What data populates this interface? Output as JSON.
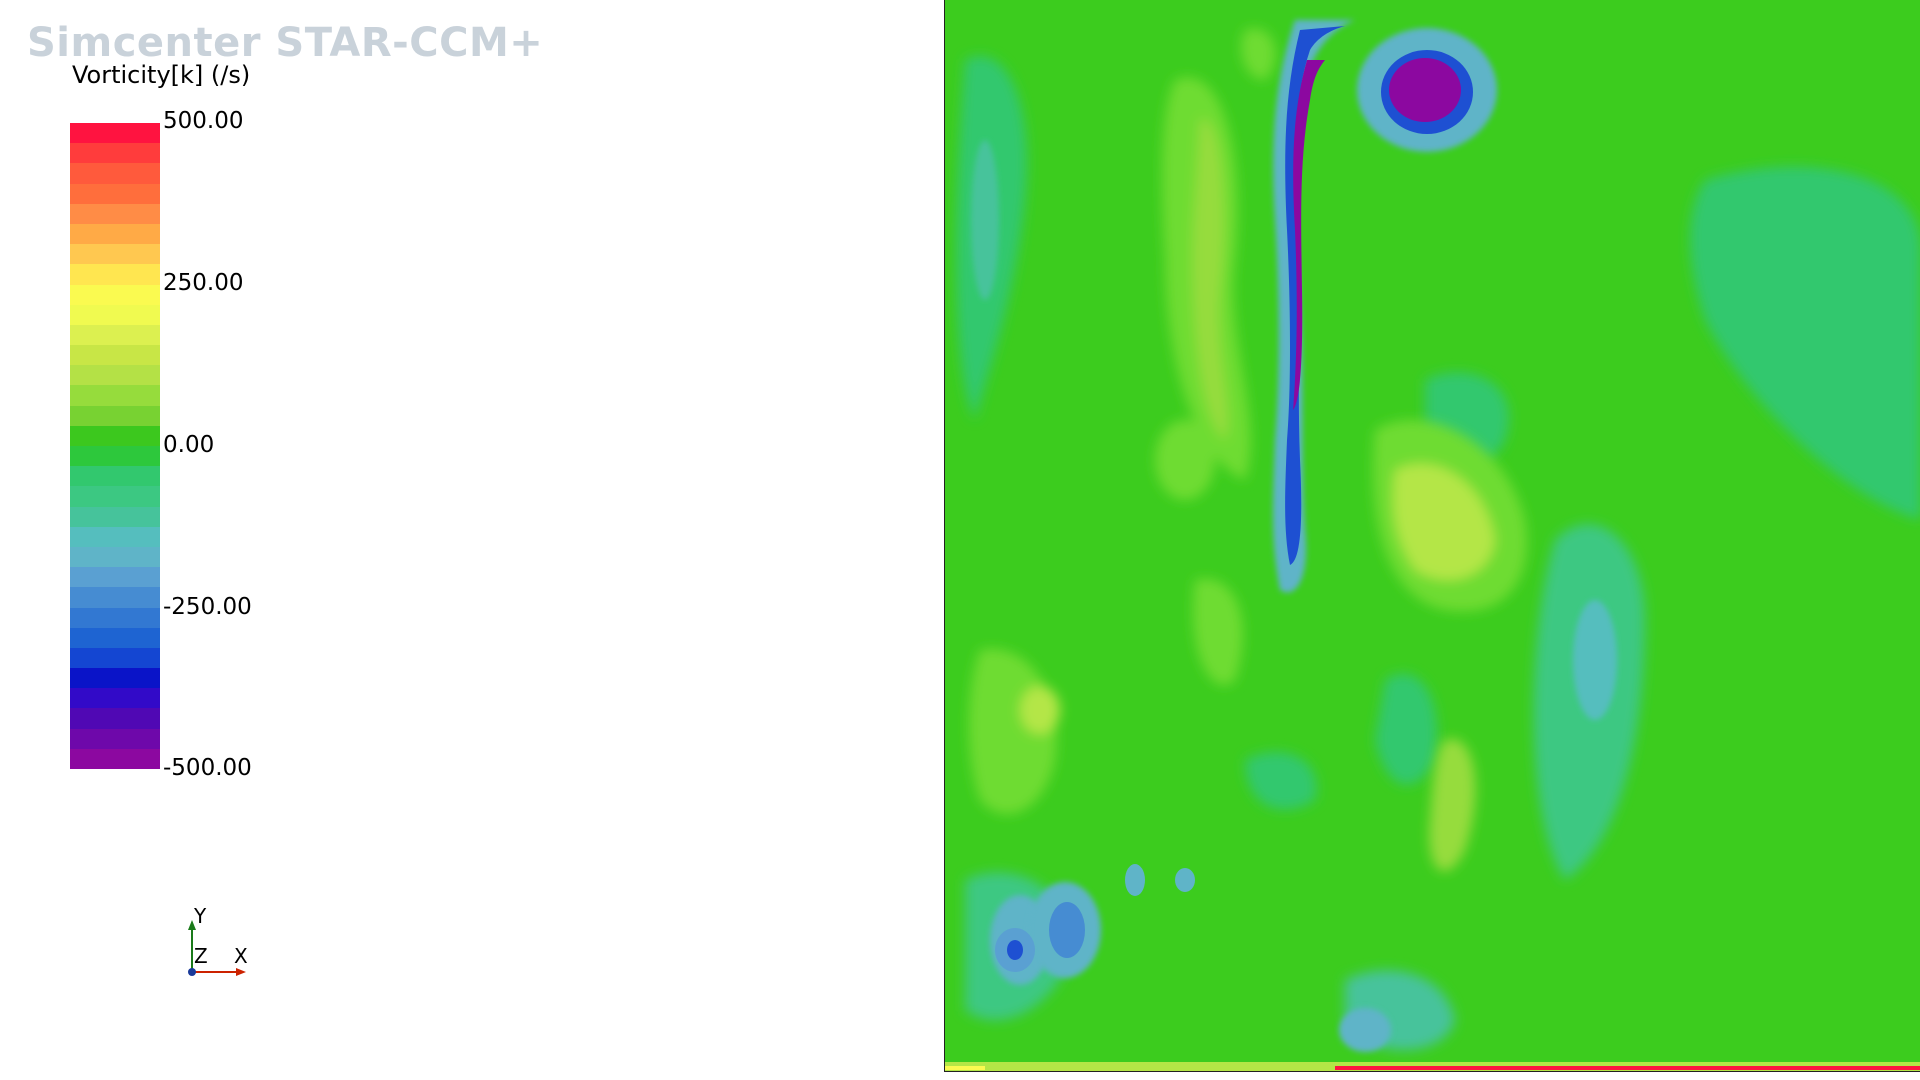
{
  "app": {
    "watermark": "Simcenter STAR-CCM+"
  },
  "legend": {
    "title": "Vorticity[k] (/s)",
    "tick_labels": [
      "500.00",
      "250.00",
      "0.00",
      "-250.00",
      "-500.00"
    ],
    "color_bands": [
      "#ff1340",
      "#ff3c3c",
      "#ff5a3c",
      "#ff6e3c",
      "#ff8c46",
      "#ffaa46",
      "#ffc850",
      "#ffe650",
      "#fafa50",
      "#f0fa50",
      "#dcf050",
      "#c8e646",
      "#b4e146",
      "#96dc3c",
      "#78d232",
      "#3cc81e",
      "#2dc83c",
      "#32c86e",
      "#3cc882",
      "#46c39b",
      "#55bebe",
      "#5fb4c8",
      "#5aa0d2",
      "#468cd2",
      "#3278d2",
      "#1e64d2",
      "#1446d2",
      "#0a14c8",
      "#320ac8",
      "#5008b4",
      "#6e08aa",
      "#8c08a0"
    ]
  },
  "triad": {
    "y_label": "Y",
    "z_label": "Z",
    "x_label": "X",
    "colors": {
      "y_axis": "#1a7a1a",
      "x_axis": "#cc2200",
      "z_dot": "#1a3a9a"
    }
  },
  "viewport": {
    "field_colors": {
      "base": "#3ccc1e",
      "light_green": "#6edc32",
      "yellow_green": "#b4e646",
      "teal": "#3cc882",
      "cyan": "#5fb4c8",
      "blue": "#1e50d2",
      "deep_blue": "#0a14c8",
      "purple": "#8c08a0",
      "red": "#ff1340"
    }
  }
}
